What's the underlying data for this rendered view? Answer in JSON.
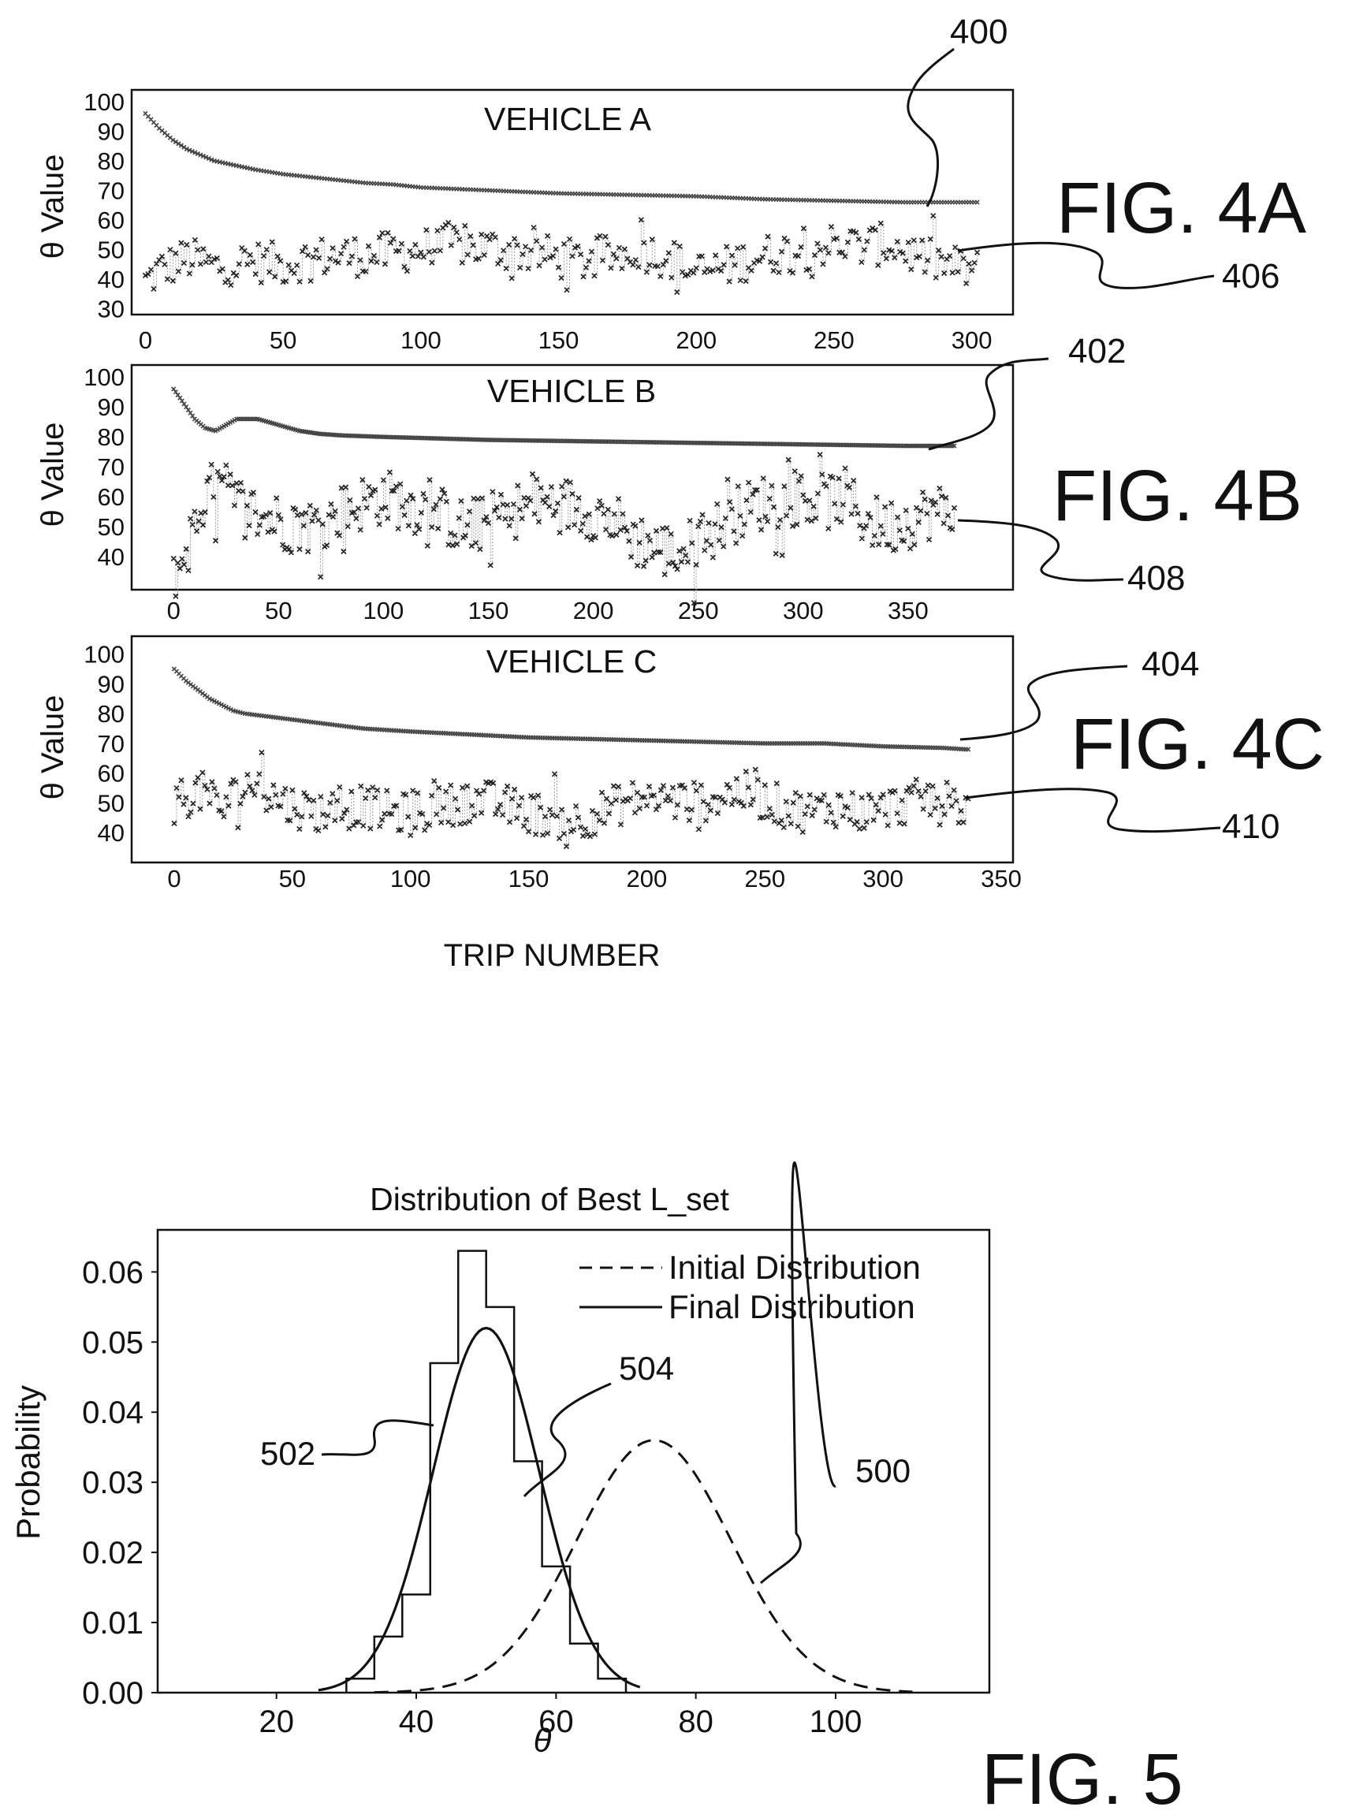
{
  "figures": {
    "fig4a_label": "FIG. 4A",
    "fig4b_label": "FIG. 4B",
    "fig4c_label": "FIG. 4C",
    "fig5_label": "FIG. 5"
  },
  "shared_xlabel": "TRIP NUMBER",
  "chart_data": [
    {
      "type": "scatter",
      "title": "VEHICLE A",
      "xlabel": "",
      "ylabel": "θ Value",
      "xlim": [
        -5,
        315
      ],
      "ylim": [
        28,
        104
      ],
      "xticks": [
        0,
        50,
        100,
        150,
        200,
        250,
        300
      ],
      "yticks": [
        30,
        40,
        50,
        60,
        70,
        80,
        90,
        100
      ],
      "callouts": {
        "upper_series": "400",
        "lower_series": "406"
      },
      "series": [
        {
          "values": [
            [
              0,
              96
            ],
            [
              5,
              91
            ],
            [
              10,
              87
            ],
            [
              15,
              84
            ],
            [
              20,
              82
            ],
            [
              25,
              80
            ],
            [
              30,
              79
            ],
            [
              40,
              77
            ],
            [
              50,
              75.5
            ],
            [
              60,
              74.5
            ],
            [
              70,
              73.5
            ],
            [
              80,
              72.5
            ],
            [
              90,
              72
            ],
            [
              100,
              71
            ],
            [
              125,
              70
            ],
            [
              150,
              69
            ],
            [
              175,
              68.5
            ],
            [
              200,
              68
            ],
            [
              225,
              67
            ],
            [
              250,
              66.5
            ],
            [
              275,
              66
            ],
            [
              300,
              66
            ]
          ]
        },
        {
          "values": [
            [
              0,
              39
            ],
            [
              5,
              43
            ],
            [
              10,
              45
            ],
            [
              15,
              47
            ],
            [
              20,
              46
            ],
            [
              25,
              44
            ],
            [
              30,
              45
            ],
            [
              40,
              46
            ],
            [
              50,
              45
            ],
            [
              60,
              47
            ],
            [
              70,
              48
            ],
            [
              80,
              48
            ],
            [
              90,
              49
            ],
            [
              100,
              50
            ],
            [
              110,
              52
            ],
            [
              120,
              51
            ],
            [
              130,
              50
            ],
            [
              140,
              49
            ],
            [
              150,
              47
            ],
            [
              160,
              46
            ],
            [
              170,
              48
            ],
            [
              180,
              50
            ],
            [
              190,
              47
            ],
            [
              200,
              42
            ],
            [
              210,
              44
            ],
            [
              220,
              47
            ],
            [
              230,
              49
            ],
            [
              240,
              50
            ],
            [
              250,
              52
            ],
            [
              260,
              51
            ],
            [
              270,
              52
            ],
            [
              280,
              48
            ],
            [
              290,
              45
            ],
            [
              300,
              43
            ]
          ]
        }
      ]
    },
    {
      "type": "scatter",
      "title": "VEHICLE B",
      "xlabel": "",
      "ylabel": "θ Value",
      "xlim": [
        -20,
        400
      ],
      "ylim": [
        29,
        104
      ],
      "xticks": [
        0,
        50,
        100,
        150,
        200,
        250,
        300,
        350
      ],
      "yticks": [
        40,
        50,
        60,
        70,
        80,
        90,
        100
      ],
      "callouts": {
        "upper_series": "402",
        "lower_series": "408"
      },
      "series": [
        {
          "values": [
            [
              0,
              96
            ],
            [
              5,
              91
            ],
            [
              10,
              86
            ],
            [
              15,
              83
            ],
            [
              20,
              82
            ],
            [
              25,
              84
            ],
            [
              30,
              86
            ],
            [
              35,
              86
            ],
            [
              40,
              86
            ],
            [
              45,
              85
            ],
            [
              50,
              84
            ],
            [
              60,
              82
            ],
            [
              70,
              81
            ],
            [
              80,
              80.5
            ],
            [
              100,
              80
            ],
            [
              150,
              79
            ],
            [
              200,
              78.5
            ],
            [
              250,
              78
            ],
            [
              300,
              77.5
            ],
            [
              350,
              77
            ]
          ]
        },
        {
          "values": [
            [
              0,
              34
            ],
            [
              5,
              40
            ],
            [
              10,
              50
            ],
            [
              15,
              60
            ],
            [
              20,
              63
            ],
            [
              25,
              62
            ],
            [
              30,
              58
            ],
            [
              40,
              54
            ],
            [
              50,
              52
            ],
            [
              60,
              50
            ],
            [
              70,
              51
            ],
            [
              80,
              55
            ],
            [
              90,
              58
            ],
            [
              100,
              60
            ],
            [
              110,
              58
            ],
            [
              120,
              56
            ],
            [
              130,
              53
            ],
            [
              140,
              49
            ],
            [
              150,
              52
            ],
            [
              160,
              55
            ],
            [
              170,
              57
            ],
            [
              180,
              58
            ],
            [
              190,
              57
            ],
            [
              200,
              55
            ],
            [
              210,
              52
            ],
            [
              220,
              46
            ],
            [
              230,
              43
            ],
            [
              240,
              41
            ],
            [
              250,
              45
            ],
            [
              260,
              50
            ],
            [
              270,
              55
            ],
            [
              280,
              58
            ],
            [
              290,
              59
            ],
            [
              300,
              60
            ],
            [
              310,
              58
            ],
            [
              320,
              60
            ],
            [
              330,
              52
            ],
            [
              340,
              50
            ],
            [
              350,
              52
            ],
            [
              360,
              55
            ]
          ]
        }
      ]
    },
    {
      "type": "scatter",
      "title": "VEHICLE C",
      "xlabel": "",
      "ylabel": "θ Value",
      "xlim": [
        -18,
        355
      ],
      "ylim": [
        30,
        106
      ],
      "xticks": [
        0,
        50,
        100,
        150,
        200,
        250,
        300,
        350
      ],
      "yticks": [
        40,
        50,
        60,
        70,
        80,
        90,
        100
      ],
      "callouts": {
        "upper_series": "404",
        "lower_series": "410"
      },
      "series": [
        {
          "values": [
            [
              0,
              95
            ],
            [
              5,
              91
            ],
            [
              10,
              88
            ],
            [
              15,
              85
            ],
            [
              20,
              83
            ],
            [
              25,
              81
            ],
            [
              30,
              80
            ],
            [
              40,
              79
            ],
            [
              50,
              78
            ],
            [
              60,
              77
            ],
            [
              70,
              76
            ],
            [
              80,
              75
            ],
            [
              100,
              74
            ],
            [
              125,
              73
            ],
            [
              150,
              72
            ],
            [
              175,
              71.5
            ],
            [
              200,
              71
            ],
            [
              225,
              70.5
            ],
            [
              250,
              70
            ],
            [
              275,
              70
            ],
            [
              300,
              69
            ],
            [
              325,
              68.5
            ],
            [
              335,
              68
            ]
          ]
        },
        {
          "values": [
            [
              0,
              50
            ],
            [
              5,
              52
            ],
            [
              10,
              54
            ],
            [
              15,
              52
            ],
            [
              20,
              48
            ],
            [
              25,
              52
            ],
            [
              30,
              56
            ],
            [
              35,
              56
            ],
            [
              40,
              53
            ],
            [
              50,
              49
            ],
            [
              60,
              47
            ],
            [
              70,
              48
            ],
            [
              80,
              49
            ],
            [
              90,
              47
            ],
            [
              100,
              46
            ],
            [
              110,
              48
            ],
            [
              120,
              50
            ],
            [
              130,
              51
            ],
            [
              140,
              49
            ],
            [
              150,
              47
            ],
            [
              160,
              45
            ],
            [
              170,
              44
            ],
            [
              180,
              47
            ],
            [
              190,
              50
            ],
            [
              200,
              52
            ],
            [
              210,
              51
            ],
            [
              220,
              50
            ],
            [
              230,
              52
            ],
            [
              240,
              54
            ],
            [
              250,
              51
            ],
            [
              260,
              48
            ],
            [
              270,
              47
            ],
            [
              280,
              49
            ],
            [
              290,
              47
            ],
            [
              300,
              48
            ],
            [
              310,
              50
            ],
            [
              320,
              52
            ],
            [
              330,
              50
            ],
            [
              335,
              48
            ]
          ]
        }
      ]
    },
    {
      "type": "line",
      "title": "Distribution of Best L_set",
      "xlabel": "θ",
      "ylabel": "Probability",
      "xlim": [
        3,
        122
      ],
      "ylim": [
        0,
        0.066
      ],
      "xticks": [
        20,
        40,
        60,
        80,
        100
      ],
      "yticks": [
        0.0,
        0.01,
        0.02,
        0.03,
        0.04,
        0.05,
        0.06
      ],
      "ytick_labels": [
        "0.00",
        "0.01",
        "0.02",
        "0.03",
        "0.04",
        "0.05",
        "0.06"
      ],
      "legend": {
        "position": "top-right",
        "entries": [
          "Initial Distribution",
          "Final Distribution"
        ]
      },
      "callouts": {
        "initial": "500",
        "histogram": "502",
        "final": "504"
      },
      "series": [
        {
          "name": "Initial Distribution",
          "style": "dashed",
          "mean": 74,
          "sd": 11,
          "peak": 0.036,
          "x_range": [
            34,
            111
          ]
        },
        {
          "name": "Final Distribution",
          "style": "solid",
          "mean": 50,
          "sd": 7.6,
          "peak": 0.052,
          "x_range": [
            26,
            72
          ]
        },
        {
          "type": "histogram",
          "bins": [
            [
              30,
              34,
              0.002
            ],
            [
              34,
              38,
              0.008
            ],
            [
              38,
              42,
              0.014
            ],
            [
              42,
              46,
              0.047
            ],
            [
              46,
              50,
              0.063
            ],
            [
              50,
              54,
              0.055
            ],
            [
              54,
              58,
              0.033
            ],
            [
              58,
              62,
              0.018
            ],
            [
              62,
              66,
              0.007
            ],
            [
              66,
              70,
              0.002
            ]
          ]
        }
      ]
    }
  ]
}
